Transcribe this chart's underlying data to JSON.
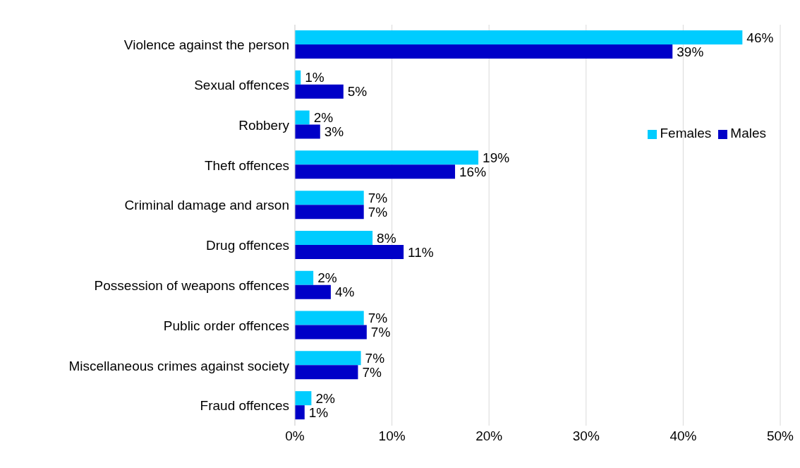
{
  "chart_data": {
    "type": "bar",
    "orientation": "horizontal",
    "categories": [
      "Violence against the person",
      "Sexual offences",
      "Robbery",
      "Theft offences",
      "Criminal damage and arson",
      "Drug offences",
      "Possession of weapons offences",
      "Public order offences",
      "Miscellaneous crimes against society",
      "Fraud offences"
    ],
    "series": [
      {
        "name": "Females",
        "color": "#00ccff",
        "values": [
          46.1,
          0.6,
          1.5,
          18.9,
          7.1,
          8.0,
          1.9,
          7.1,
          6.8,
          1.7
        ],
        "value_labels": [
          "46%",
          "1%",
          "2%",
          "19%",
          "7%",
          "8%",
          "2%",
          "7%",
          "7%",
          "2%"
        ]
      },
      {
        "name": "Males",
        "color": "#0000c8",
        "values": [
          38.9,
          5.0,
          2.6,
          16.5,
          7.1,
          11.2,
          3.7,
          7.4,
          6.5,
          1.0
        ],
        "value_labels": [
          "39%",
          "5%",
          "3%",
          "16%",
          "7%",
          "11%",
          "4%",
          "7%",
          "7%",
          "1%"
        ]
      }
    ],
    "xlim": [
      0,
      50
    ],
    "xticks": [
      {
        "value": 0,
        "label": "0%"
      },
      {
        "value": 10,
        "label": "10%"
      },
      {
        "value": 20,
        "label": "20%"
      },
      {
        "value": 30,
        "label": "30%"
      },
      {
        "value": 40,
        "label": "40%"
      },
      {
        "value": 50,
        "label": "50%"
      }
    ],
    "grid": "x",
    "legend": "top right"
  }
}
